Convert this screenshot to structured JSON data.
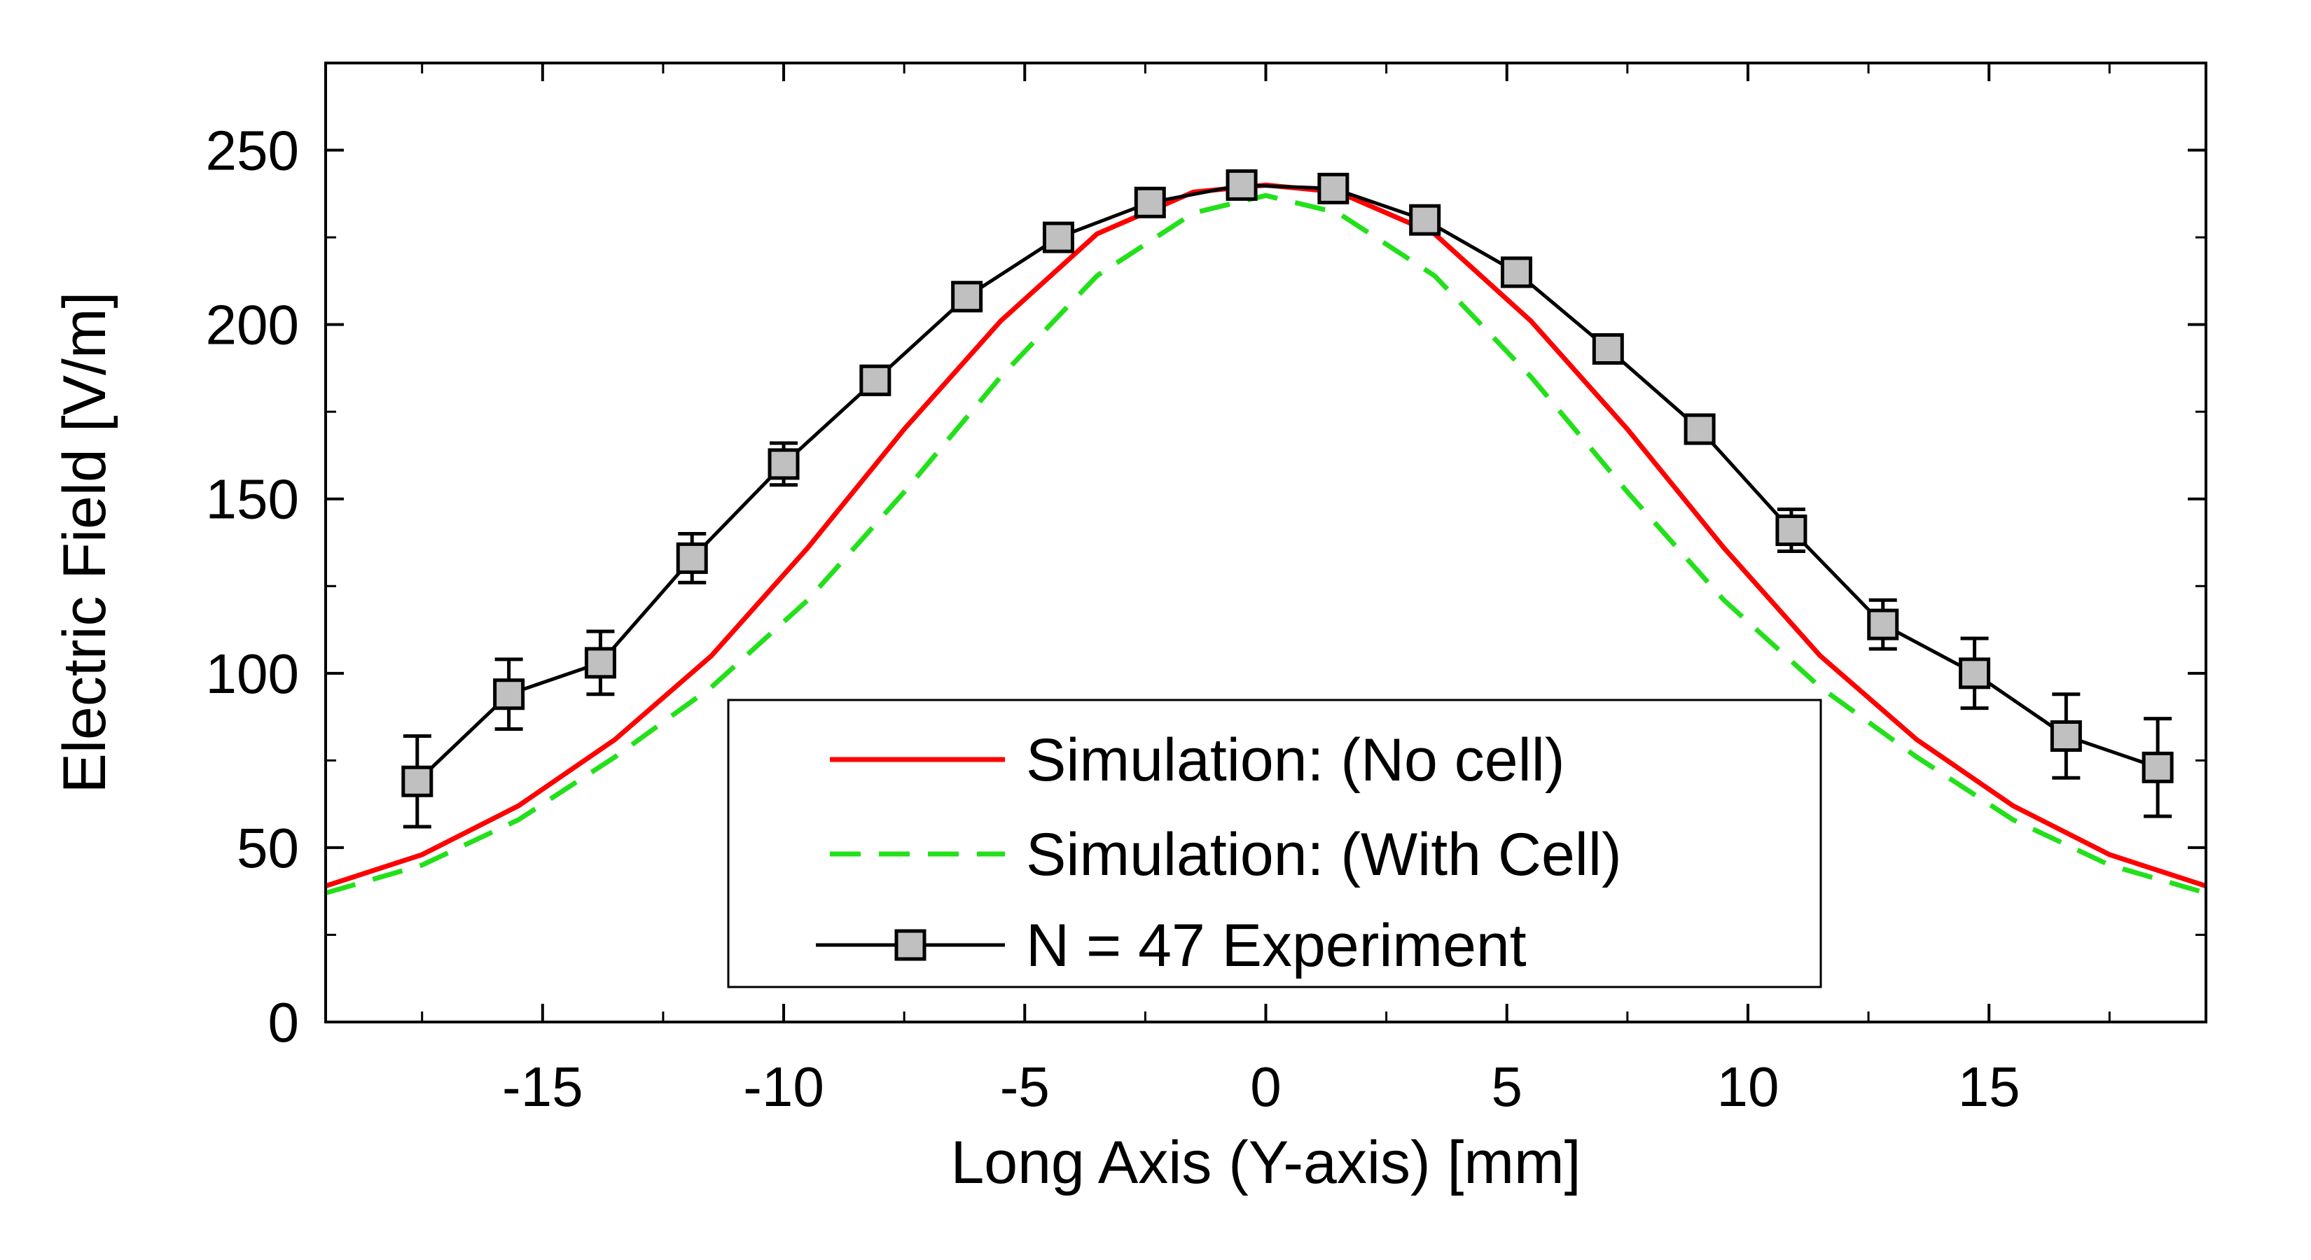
{
  "chart_data": {
    "type": "line",
    "title": "",
    "xlabel": "Long Axis (Y-axis) [mm]",
    "ylabel": "Electric Field [V/m]",
    "xlim": [
      -19.5,
      19.5
    ],
    "ylim": [
      0,
      275
    ],
    "xticks": [
      -15,
      -10,
      -5,
      0,
      5,
      10,
      15
    ],
    "xtick_labels": [
      "-15",
      "-10",
      "-5",
      "0",
      "5",
      "10",
      "15"
    ],
    "yticks": [
      0,
      50,
      100,
      150,
      200,
      250
    ],
    "ytick_labels": [
      "0",
      "50",
      "100",
      "150",
      "200",
      "250"
    ],
    "grid": false,
    "legend_position": "bottom-center",
    "series": [
      {
        "name": "Simulation: (No cell)",
        "style": "solid",
        "color": "#ff0000",
        "marker": "none",
        "x": [
          -19.5,
          -17.5,
          -15.5,
          -13.5,
          -11.5,
          -9.5,
          -7.5,
          -5.5,
          -3.5,
          -1.5,
          0,
          1.5,
          3.5,
          5.5,
          7.5,
          9.5,
          11.5,
          13.5,
          15.5,
          17.5,
          19.5
        ],
        "y": [
          39,
          48,
          62,
          81,
          105,
          136,
          170,
          201,
          226,
          238,
          240,
          238,
          226,
          201,
          170,
          136,
          105,
          81,
          62,
          48,
          39
        ]
      },
      {
        "name": "Simulation: (With Cell)",
        "style": "dashed",
        "color": "#22e01a",
        "marker": "none",
        "x": [
          -19.5,
          -17.5,
          -15.5,
          -13.5,
          -11.5,
          -9.5,
          -7.5,
          -5.5,
          -3.5,
          -1.5,
          0,
          1.5,
          3.5,
          5.5,
          7.5,
          9.5,
          11.5,
          13.5,
          15.5,
          17.5,
          19.5
        ],
        "y": [
          37,
          45,
          58,
          76,
          96,
          121,
          152,
          185,
          214,
          232,
          237,
          232,
          214,
          185,
          152,
          121,
          96,
          76,
          58,
          45,
          37
        ]
      },
      {
        "name": "N = 47 Experiment",
        "style": "solid",
        "color": "#000000",
        "marker": "square",
        "marker_fill": "#c0c0c0",
        "x": [
          -17.6,
          -15.7,
          -13.8,
          -11.9,
          -10.0,
          -8.1,
          -6.2,
          -4.3,
          -2.4,
          -0.5,
          1.4,
          3.3,
          5.2,
          7.1,
          9.0,
          10.9,
          12.8,
          14.7,
          16.6,
          18.5
        ],
        "y": [
          69,
          94,
          103,
          133,
          160,
          184,
          208,
          225,
          235,
          240,
          239,
          230,
          215,
          193,
          170,
          141,
          114,
          100,
          82,
          73
        ],
        "error": [
          13,
          10,
          9,
          7,
          6,
          4,
          3,
          3,
          2,
          2,
          2,
          3,
          3,
          3,
          4,
          6,
          7,
          10,
          12,
          14
        ]
      }
    ]
  }
}
